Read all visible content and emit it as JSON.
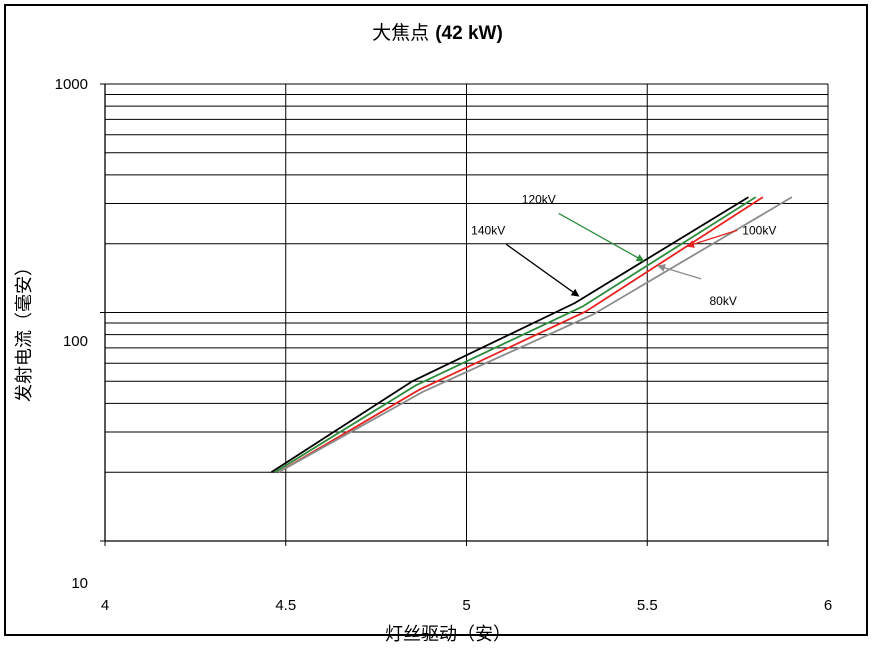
{
  "chart_data": {
    "type": "line",
    "title_prefix": "大焦点",
    "title_bold": "(42 kW)",
    "xlabel": "灯丝驱动（安）",
    "ylabel": "发射电流（毫安）",
    "x_scale": "linear",
    "y_scale": "log",
    "xlim": [
      4,
      6
    ],
    "ylim": [
      10,
      1000
    ],
    "x_ticks": [
      "4",
      "4.5",
      "5",
      "5.5",
      "6"
    ],
    "y_ticks": [
      "10",
      "100",
      "1000"
    ],
    "grid": true,
    "series": [
      {
        "name": "140kV",
        "color": "#000000",
        "x": [
          4.46,
          4.85,
          5.3,
          5.78
        ],
        "y": [
          20,
          50,
          110,
          320
        ]
      },
      {
        "name": "120kV",
        "color": "#2e8b3c",
        "x": [
          4.47,
          4.86,
          5.32,
          5.8
        ],
        "y": [
          20,
          48,
          106,
          320
        ]
      },
      {
        "name": "100kV",
        "color": "#e8231f",
        "x": [
          4.48,
          4.87,
          5.33,
          5.82
        ],
        "y": [
          20,
          46,
          101,
          320
        ]
      },
      {
        "name": "80kV",
        "color": "#8c8c8c",
        "x": [
          4.48,
          4.88,
          5.35,
          5.9
        ],
        "y": [
          20,
          45,
          98,
          320
        ]
      }
    ],
    "annotations": [
      {
        "text": "140kV",
        "series": "140kV",
        "text_at": [
          5.06,
          220
        ],
        "arrow_to": [
          5.31,
          118
        ]
      },
      {
        "text": "120kV",
        "series": "120kV",
        "text_at": [
          5.2,
          300
        ],
        "arrow_to": [
          5.49,
          168
        ]
      },
      {
        "text": "100kV",
        "series": "100kV",
        "text_at": [
          5.81,
          220
        ],
        "arrow_to": [
          5.61,
          195
        ]
      },
      {
        "text": "80kV",
        "series": "80kV",
        "text_at": [
          5.71,
          108
        ],
        "arrow_to": [
          5.53,
          160
        ]
      }
    ]
  }
}
